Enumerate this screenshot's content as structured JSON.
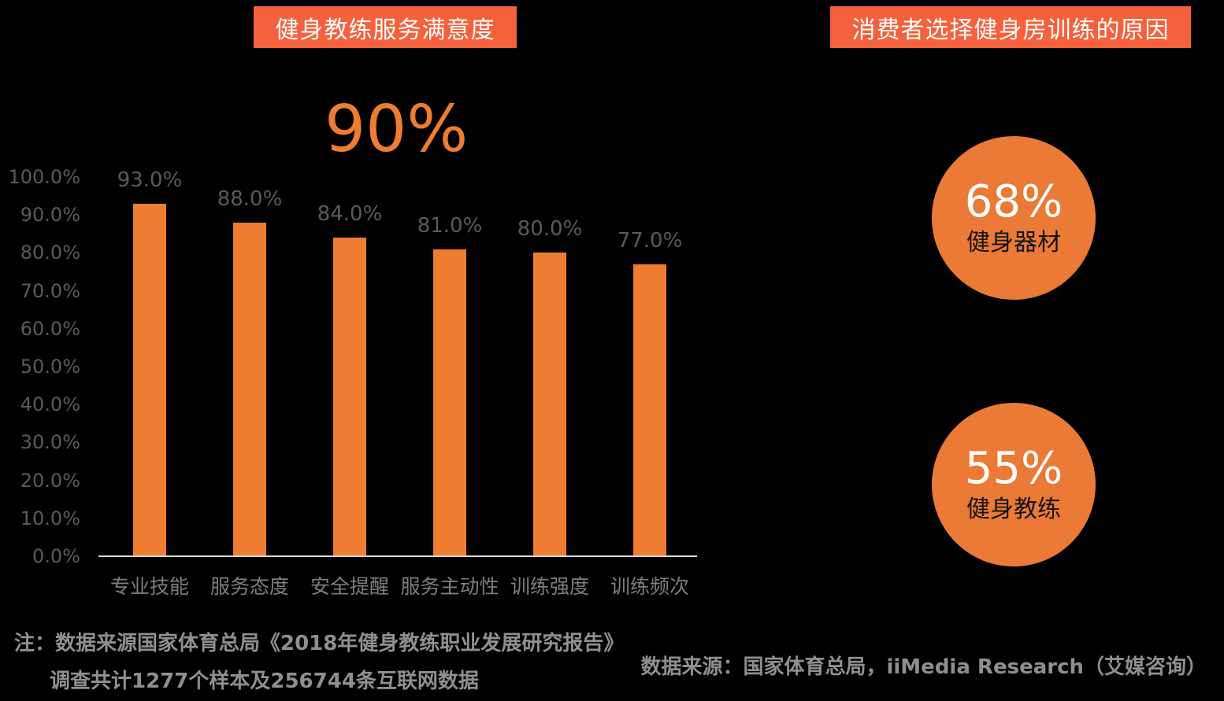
{
  "colors": {
    "background": "#000000",
    "title_bg": "#F4613C",
    "bar_orange": "#EE7D31",
    "circle_orange": "#EA7A35",
    "axis_line_gray": "#D9D9D9",
    "axis_label_gray": "#5A5A5A",
    "category_label_gray": "#7D7D7D",
    "note_gray": "#8F8F8F",
    "circle_label_dark": "#141414",
    "white": "#FFFFFF"
  },
  "left_chart": {
    "title": "健身教练服务满意度",
    "highlight": "90%"
  },
  "chart_data": {
    "type": "bar",
    "title": "健身教练服务满意度",
    "categories": [
      "专业技能",
      "服务态度",
      "安全提醒",
      "服务主动性",
      "训练强度",
      "训练频次"
    ],
    "values": [
      93.0,
      88.0,
      84.0,
      81.0,
      80.0,
      77.0
    ],
    "value_labels": [
      "93.0%",
      "88.0%",
      "84.0%",
      "81.0%",
      "80.0%",
      "77.0%"
    ],
    "y_ticks": [
      "0.0%",
      "10.0%",
      "20.0%",
      "30.0%",
      "40.0%",
      "50.0%",
      "60.0%",
      "70.0%",
      "80.0%",
      "90.0%",
      "100.0%"
    ],
    "ylim": [
      0,
      100
    ],
    "grid": false,
    "legend": "none",
    "bar_color": "#EE7D31",
    "annotation": "90%"
  },
  "right_panel": {
    "title": "消费者选择健身房训练的原因",
    "circles": [
      {
        "percent": "68%",
        "label": "健身器材"
      },
      {
        "percent": "55%",
        "label": "健身教练"
      }
    ]
  },
  "footnotes": {
    "note_line1": "注：数据来源国家体育总局《2018年健身教练职业发展研究报告》",
    "note_line2": "调查共计1277个样本及256744条互联网数据",
    "source_line": "数据来源：国家体育总局，iiMedia Research（艾媒咨询）"
  }
}
